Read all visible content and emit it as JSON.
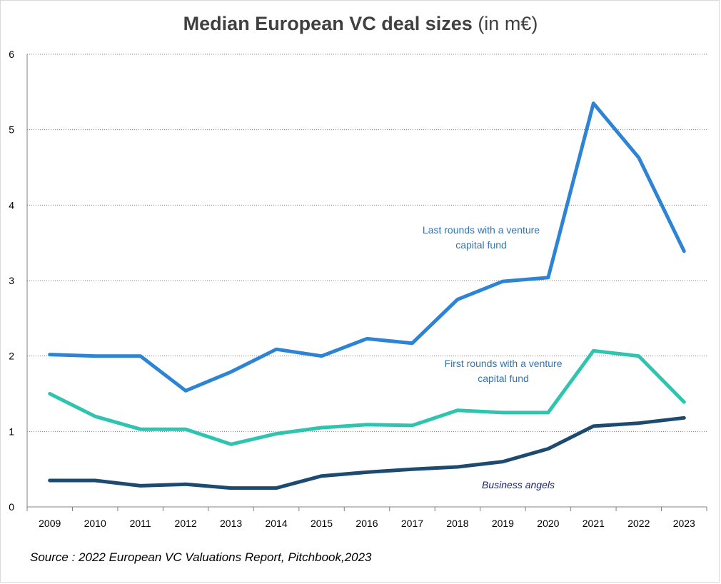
{
  "title": "Median European VC deal sizes",
  "title_unit": "(in m€)",
  "source": "Source : 2022 European VC Valuations Report, Pitchbook,2023",
  "chart_data": {
    "type": "line",
    "title": "Median European VC deal sizes (in m€)",
    "xlabel": "",
    "ylabel": "",
    "ylim": [
      0,
      6
    ],
    "yticks": [
      0,
      1,
      2,
      3,
      4,
      5,
      6
    ],
    "grid": true,
    "categories": [
      "2009",
      "2010",
      "2011",
      "2012",
      "2013",
      "2014",
      "2015",
      "2016",
      "2017",
      "2018",
      "2019",
      "2020",
      "2021",
      "2022",
      "2023"
    ],
    "series": [
      {
        "name": "Last rounds with a venture capital fund",
        "label_lines": [
          "Last rounds with a venture",
          "capital fund"
        ],
        "color": "#2d84d4",
        "label_color": "#2e75b6",
        "italic": false,
        "values": [
          2.02,
          2.0,
          2.0,
          1.54,
          1.79,
          2.09,
          2.0,
          2.23,
          2.17,
          2.75,
          2.99,
          3.04,
          5.35,
          4.63,
          3.39
        ]
      },
      {
        "name": "First rounds with a venture capital fund",
        "label_lines": [
          "First rounds with a venture",
          "capital fund"
        ],
        "color": "#2ec4b0",
        "label_color": "#2e75b6",
        "italic": false,
        "values": [
          1.5,
          1.2,
          1.03,
          1.03,
          0.83,
          0.97,
          1.05,
          1.09,
          1.08,
          1.28,
          1.25,
          1.25,
          2.07,
          2.0,
          1.39
        ]
      },
      {
        "name": "Business angels",
        "label_lines": [
          "Business angels"
        ],
        "color": "#1c4a70",
        "label_color": "#1a237e",
        "italic": true,
        "values": [
          0.35,
          0.35,
          0.28,
          0.3,
          0.25,
          0.25,
          0.41,
          0.46,
          0.5,
          0.53,
          0.6,
          0.77,
          1.07,
          1.11,
          1.18
        ]
      }
    ]
  }
}
